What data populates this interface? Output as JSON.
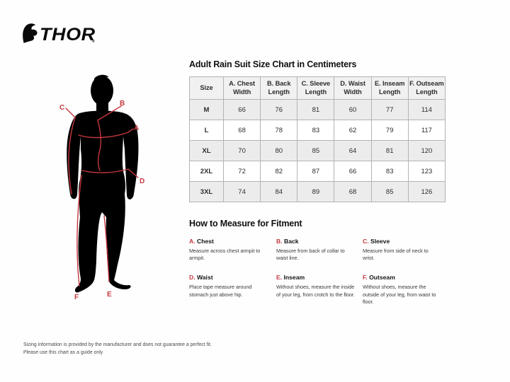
{
  "brand": {
    "name": "THOR",
    "reg": "®"
  },
  "colors": {
    "accent": "#c5383f",
    "silhouette": "#000000"
  },
  "figure": {
    "labels": [
      "A",
      "B",
      "C",
      "D",
      "E",
      "F"
    ]
  },
  "size_chart": {
    "title": "Adult Rain Suit Size Chart in Centimeters",
    "columns": [
      "Size",
      "A. Chest\nWidth",
      "B. Back\nLength",
      "C. Sleeve\nLength",
      "D. Waist\nWidth",
      "E. Inseam\nLength",
      "F. Outseam\nLength"
    ],
    "rows": [
      {
        "size": "M",
        "values": [
          66,
          76,
          81,
          60,
          77,
          114
        ]
      },
      {
        "size": "L",
        "values": [
          68,
          78,
          83,
          62,
          79,
          117
        ]
      },
      {
        "size": "XL",
        "values": [
          70,
          80,
          85,
          64,
          81,
          120
        ]
      },
      {
        "size": "2XL",
        "values": [
          72,
          82,
          87,
          66,
          83,
          123
        ]
      },
      {
        "size": "3XL",
        "values": [
          74,
          84,
          89,
          68,
          85,
          126
        ]
      }
    ]
  },
  "how_to_measure": {
    "heading": "How to Measure for Fitment",
    "items": [
      {
        "letter": "A.",
        "name": "Chest",
        "description": "Measure across chest armpit to armpit."
      },
      {
        "letter": "B.",
        "name": "Back",
        "description": "Measure from back of collar to waist line."
      },
      {
        "letter": "C.",
        "name": "Sleeve",
        "description": "Measure from side of neck to wrist."
      },
      {
        "letter": "D.",
        "name": "Waist",
        "description": "Place tape measure around stomach just above hip."
      },
      {
        "letter": "E.",
        "name": "Inseam",
        "description": "Without shoes, measure the inside of your leg, from crotch to the floor."
      },
      {
        "letter": "F.",
        "name": "Outseam",
        "description": "Without shoes, measure the outside of your leg, from waist to floor."
      }
    ]
  },
  "footer": {
    "line1": "Sizing information is provided by the manufacturer and does not guarantee a perfect fit.",
    "line2": "Please use this chart as a guide only"
  }
}
